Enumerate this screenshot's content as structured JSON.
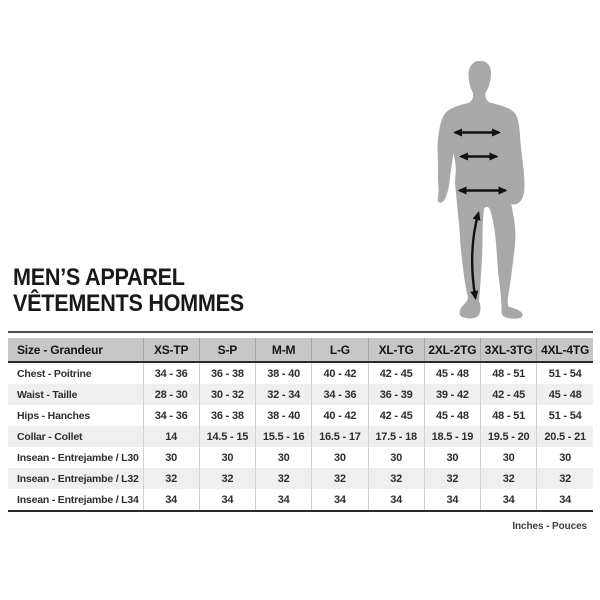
{
  "title": {
    "line1": "MEN’S APPAREL",
    "line2": "VÊTEMENTS HOMMES"
  },
  "figure": {
    "description": "gray male body silhouette with measurement arrows",
    "silhouette_color": "#a8a8a8",
    "arrow_color": "#111111",
    "arrows": [
      "chest",
      "waist",
      "hips",
      "inseam"
    ]
  },
  "table": {
    "columns": [
      "Size - Grandeur",
      "XS-TP",
      "S-P",
      "M-M",
      "L-G",
      "XL-TG",
      "2XL-2TG",
      "3XL-3TG",
      "4XL-4TG"
    ],
    "rows": [
      {
        "label": "Chest - Poitrine",
        "values": [
          "34 - 36",
          "36 - 38",
          "38 - 40",
          "40 - 42",
          "42 - 45",
          "45 - 48",
          "48 - 51",
          "51 - 54"
        ]
      },
      {
        "label": "Waist - Taille",
        "values": [
          "28 - 30",
          "30 - 32",
          "32 - 34",
          "34 - 36",
          "36 - 39",
          "39 - 42",
          "42 - 45",
          "45 - 48"
        ]
      },
      {
        "label": "Hips - Hanches",
        "values": [
          "34 - 36",
          "36 - 38",
          "38 - 40",
          "40 - 42",
          "42 - 45",
          "45 - 48",
          "48 - 51",
          "51 - 54"
        ]
      },
      {
        "label": "Collar - Collet",
        "values": [
          "14",
          "14.5 - 15",
          "15.5 - 16",
          "16.5 - 17",
          "17.5 - 18",
          "18.5 - 19",
          "19.5 - 20",
          "20.5 - 21"
        ]
      },
      {
        "label": "Insean - Entrejambe / L30",
        "values": [
          "30",
          "30",
          "30",
          "30",
          "30",
          "30",
          "30",
          "30"
        ]
      },
      {
        "label": "Insean - Entrejambe / L32",
        "values": [
          "32",
          "32",
          "32",
          "32",
          "32",
          "32",
          "32",
          "32"
        ]
      },
      {
        "label": "Insean - Entrejambe / L34",
        "values": [
          "34",
          "34",
          "34",
          "34",
          "34",
          "34",
          "34",
          "34"
        ]
      }
    ],
    "header_bg": "#c7c7c7",
    "alt_row_bg": "#efefef"
  },
  "footnote": "Inches - Pouces"
}
